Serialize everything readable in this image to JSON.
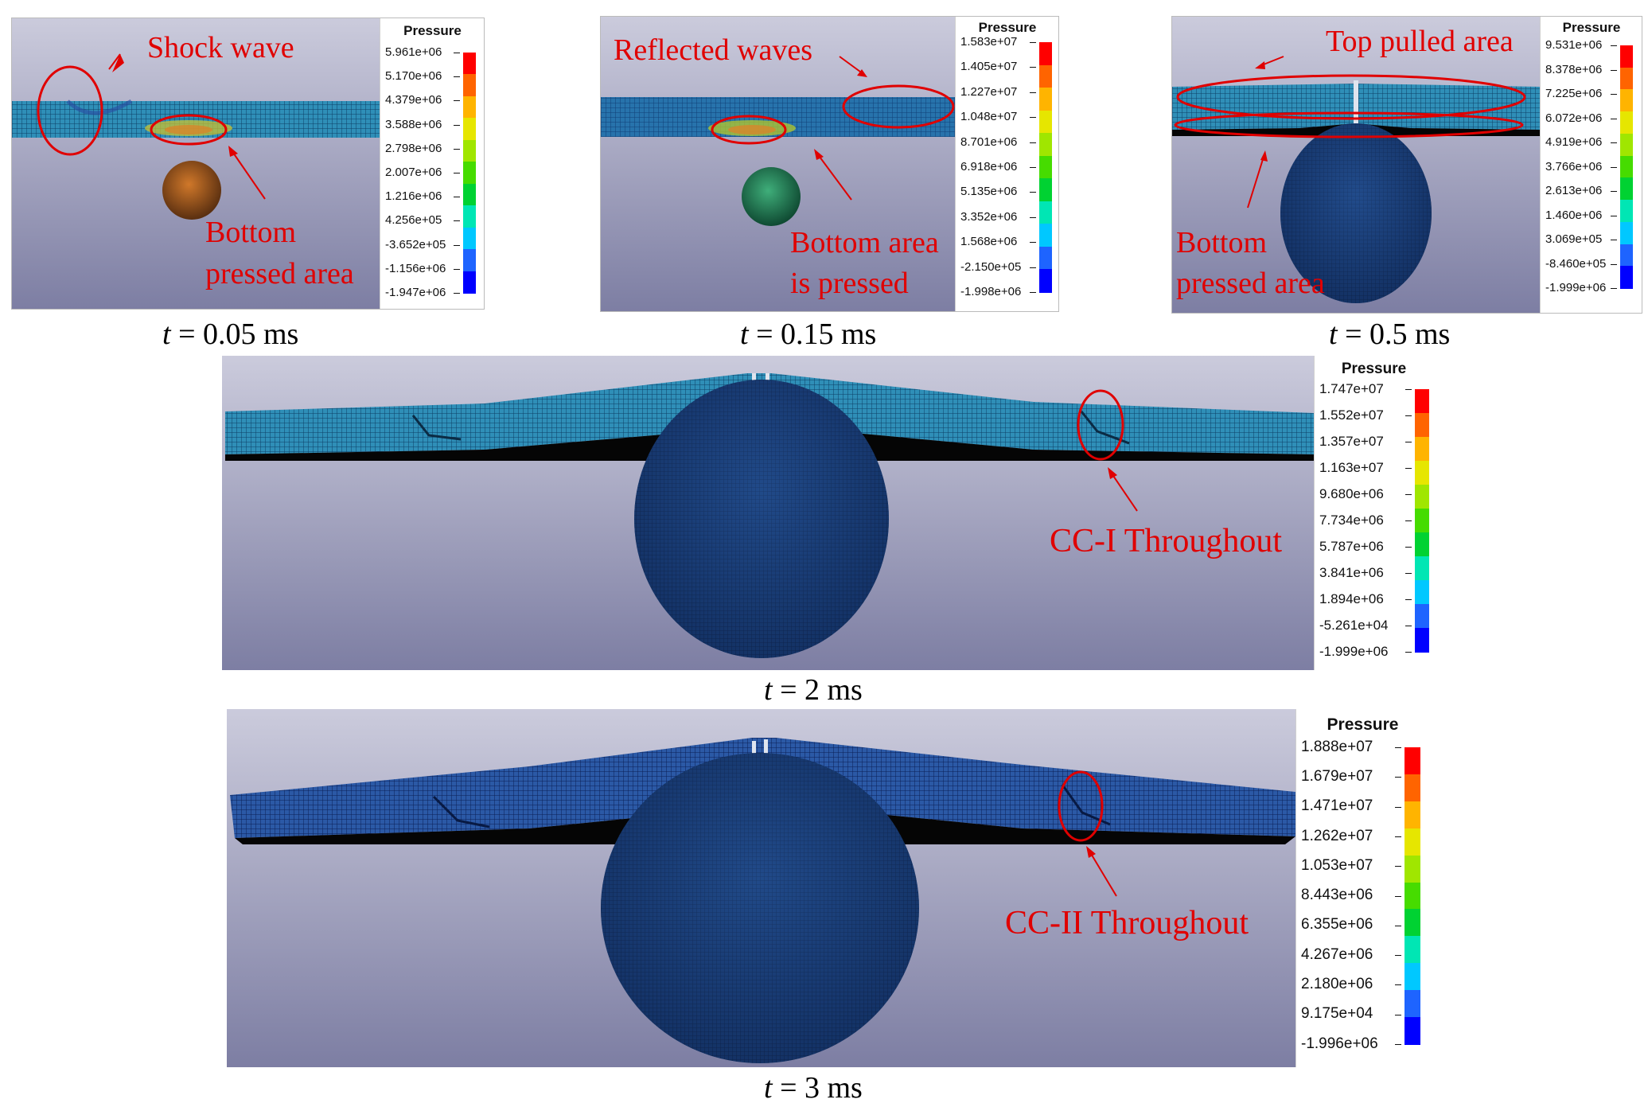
{
  "legend_title": "Pressure",
  "colors": {
    "scale": [
      "#0000ff",
      "#1e64ff",
      "#00c8ff",
      "#00e6b4",
      "#00d232",
      "#46dc00",
      "#a0e600",
      "#e6e600",
      "#ffb400",
      "#ff6400",
      "#ff0000"
    ],
    "annotation": "#e00000",
    "background_top": "#c9cadb",
    "background_bottom": "#7e7fa4",
    "mesh": "#3aa0c8",
    "mesh_dark": "#1e3c78"
  },
  "panels": [
    {
      "id": "t005",
      "caption": {
        "symbol": "t",
        "rest": " = 0.05 ms"
      },
      "legend_ticks": [
        "5.961e+06",
        "5.170e+06",
        "4.379e+06",
        "3.588e+06",
        "2.798e+06",
        "2.007e+06",
        "1.216e+06",
        "4.256e+05",
        "-3.652e+05",
        "-1.156e+06",
        "-1.947e+06"
      ],
      "annotations": [
        "Shock wave",
        "Bottom",
        "pressed area"
      ]
    },
    {
      "id": "t015",
      "caption": {
        "symbol": "t",
        "rest": " = 0.15 ms"
      },
      "legend_ticks": [
        "1.583e+07",
        "1.405e+07",
        "1.227e+07",
        "1.048e+07",
        "8.701e+06",
        "6.918e+06",
        "5.135e+06",
        "3.352e+06",
        "1.568e+06",
        "-2.150e+05",
        "-1.998e+06"
      ],
      "annotations": [
        "Reflected waves",
        "Bottom area",
        "is pressed"
      ]
    },
    {
      "id": "t05",
      "caption": {
        "symbol": "t",
        "rest": " = 0.5 ms"
      },
      "legend_ticks": [
        "9.531e+06",
        "8.378e+06",
        "7.225e+06",
        "6.072e+06",
        "4.919e+06",
        "3.766e+06",
        "2.613e+06",
        "1.460e+06",
        "3.069e+05",
        "-8.460e+05",
        "-1.999e+06"
      ],
      "annotations": [
        "Top pulled  area",
        "Bottom",
        "pressed area"
      ]
    },
    {
      "id": "t2",
      "caption": {
        "symbol": "t",
        "rest": " = 2 ms"
      },
      "legend_ticks": [
        "1.747e+07",
        "1.552e+07",
        "1.357e+07",
        "1.163e+07",
        "9.680e+06",
        "7.734e+06",
        "5.787e+06",
        "3.841e+06",
        "1.894e+06",
        "-5.261e+04",
        "-1.999e+06"
      ],
      "annotations": [
        "CC-I Throughout"
      ]
    },
    {
      "id": "t3",
      "caption": {
        "symbol": "t",
        "rest": " = 3 ms"
      },
      "legend_ticks": [
        "1.888e+07",
        "1.679e+07",
        "1.471e+07",
        "1.262e+07",
        "1.053e+07",
        "8.443e+06",
        "6.355e+06",
        "4.267e+06",
        "2.180e+06",
        "9.175e+04",
        "-1.996e+06"
      ],
      "annotations": [
        "CC-II Throughout"
      ]
    }
  ]
}
